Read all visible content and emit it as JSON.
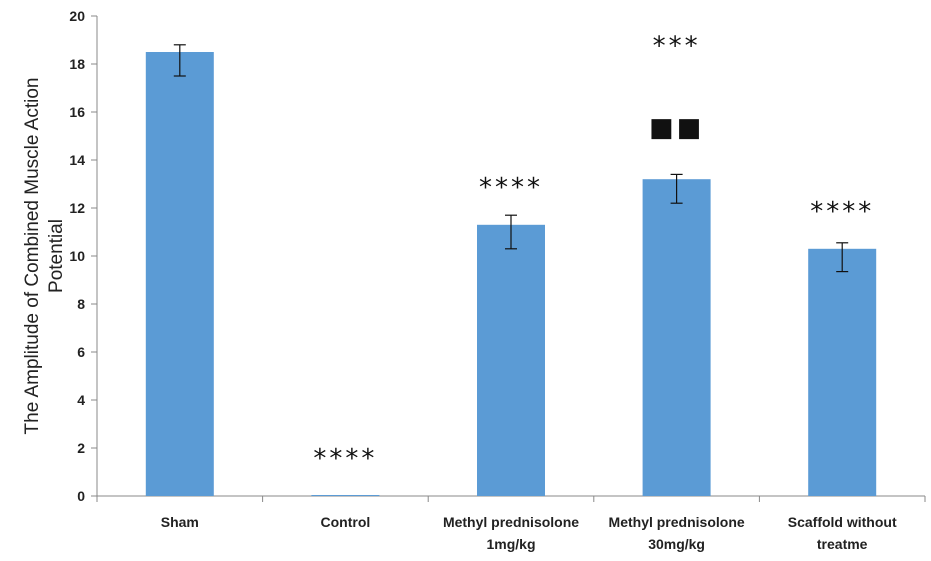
{
  "chart_data": {
    "type": "bar",
    "title": "",
    "xlabel": "",
    "ylabel": [
      "The Amplitude of Combined Muscle Action",
      "Potential"
    ],
    "ylim": [
      0,
      20
    ],
    "yticks": [
      "0",
      "2",
      "4",
      "6",
      "8",
      "10",
      "12",
      "14",
      "16",
      "18",
      "20"
    ],
    "categories": [
      [
        "Sham"
      ],
      [
        "Control"
      ],
      [
        "Methyl prednisolone",
        "1mg/kg"
      ],
      [
        "Methyl prednisolone",
        "30mg/kg"
      ],
      [
        "Scaffold without",
        "treatme"
      ]
    ],
    "values": [
      18.5,
      0,
      11.3,
      13.2,
      10.3
    ],
    "error_upper": [
      18.8,
      0,
      11.7,
      13.4,
      10.55
    ],
    "error_lower": [
      17.5,
      0,
      10.3,
      12.2,
      9.35
    ],
    "annotations": [
      {
        "category_index": 1,
        "y": 1.2,
        "text": "****"
      },
      {
        "category_index": 2,
        "y": 12.5,
        "text": "****"
      },
      {
        "category_index": 3,
        "y": 18.4,
        "text": "***"
      },
      {
        "category_index": 3,
        "y": 15.0,
        "text": "■■"
      },
      {
        "category_index": 4,
        "y": 11.5,
        "text": "****"
      }
    ],
    "bar_color": "#5b9bd5",
    "grid": false,
    "legend": "none"
  }
}
